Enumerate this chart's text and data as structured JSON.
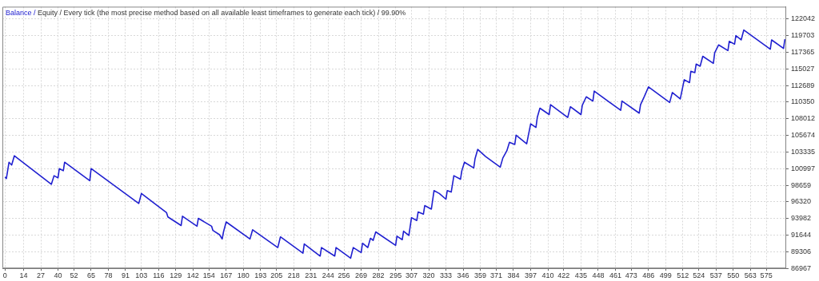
{
  "chart_data": {
    "type": "line",
    "title": "Balance / Equity / Every tick (the most precise method based on all available least timeframes to generate each tick) / 99.90%",
    "x": [
      0,
      1,
      3,
      5,
      7,
      35,
      37,
      40,
      41,
      44,
      45,
      64,
      65,
      101,
      103,
      122,
      123,
      133,
      134,
      145,
      146,
      156,
      157,
      162,
      164,
      165,
      167,
      185,
      187,
      206,
      208,
      225,
      226,
      238,
      239,
      249,
      250,
      261,
      263,
      269,
      270,
      274,
      276,
      278,
      280,
      295,
      296,
      300,
      301,
      305,
      307,
      311,
      312,
      316,
      317,
      322,
      324,
      328,
      333,
      334,
      337,
      339,
      344,
      345,
      347,
      354,
      355,
      357,
      363,
      374,
      376,
      379,
      381,
      385,
      386,
      394,
      397,
      401,
      402,
      404,
      411,
      412,
      425,
      427,
      435,
      436,
      439,
      444,
      445,
      465,
      466,
      479,
      480,
      483,
      486,
      502,
      504,
      510,
      513,
      517,
      518,
      521,
      522,
      525,
      527,
      535,
      536,
      539,
      546,
      547,
      551,
      552,
      556,
      558,
      578,
      579,
      588,
      589
    ],
    "series": [
      {
        "color": "#2020d0",
        "values": [
          99800,
          99600,
          101900,
          101500,
          102800,
          98800,
          100000,
          99700,
          101000,
          100700,
          101900,
          99300,
          101000,
          96100,
          97500,
          94800,
          94200,
          93000,
          94300,
          92900,
          94000,
          92900,
          92300,
          91700,
          91100,
          92100,
          93500,
          91100,
          92400,
          89900,
          91400,
          89100,
          90400,
          88700,
          89900,
          88700,
          89900,
          88400,
          89900,
          89200,
          90500,
          89900,
          91200,
          90900,
          92100,
          90200,
          91500,
          91000,
          92200,
          91600,
          94100,
          93700,
          94900,
          94600,
          95800,
          95300,
          97900,
          97500,
          96700,
          97900,
          97700,
          100000,
          99500,
          100700,
          101900,
          101100,
          102400,
          103700,
          102700,
          101200,
          102500,
          103500,
          104700,
          104400,
          105700,
          104500,
          107300,
          106800,
          108200,
          109500,
          108600,
          110000,
          108200,
          109700,
          108600,
          109900,
          111100,
          110500,
          111900,
          109200,
          110500,
          108800,
          110000,
          111200,
          112500,
          110300,
          111700,
          110800,
          113500,
          113100,
          114700,
          114500,
          115700,
          115400,
          116800,
          115800,
          117300,
          118400,
          117600,
          118900,
          118500,
          119700,
          119100,
          120500,
          117800,
          119100,
          117900,
          119200
        ]
      }
    ],
    "xlim": [
      -2,
      590
    ],
    "xticks": [
      0,
      14,
      27,
      40,
      52,
      65,
      78,
      91,
      103,
      116,
      129,
      142,
      154,
      167,
      180,
      193,
      205,
      218,
      231,
      244,
      256,
      269,
      282,
      295,
      307,
      320,
      333,
      346,
      359,
      371,
      384,
      397,
      410,
      422,
      435,
      448,
      461,
      473,
      486,
      499,
      512,
      524,
      537,
      550,
      563,
      575
    ],
    "ylim": [
      86967,
      123770
    ],
    "yticks": [
      86967,
      89306,
      91644,
      93982,
      96320,
      98659,
      100997,
      103335,
      105674,
      108012,
      110350,
      112689,
      115027,
      117365,
      119703,
      122042
    ],
    "grid": true,
    "marker": "none",
    "line_style": "solid"
  }
}
